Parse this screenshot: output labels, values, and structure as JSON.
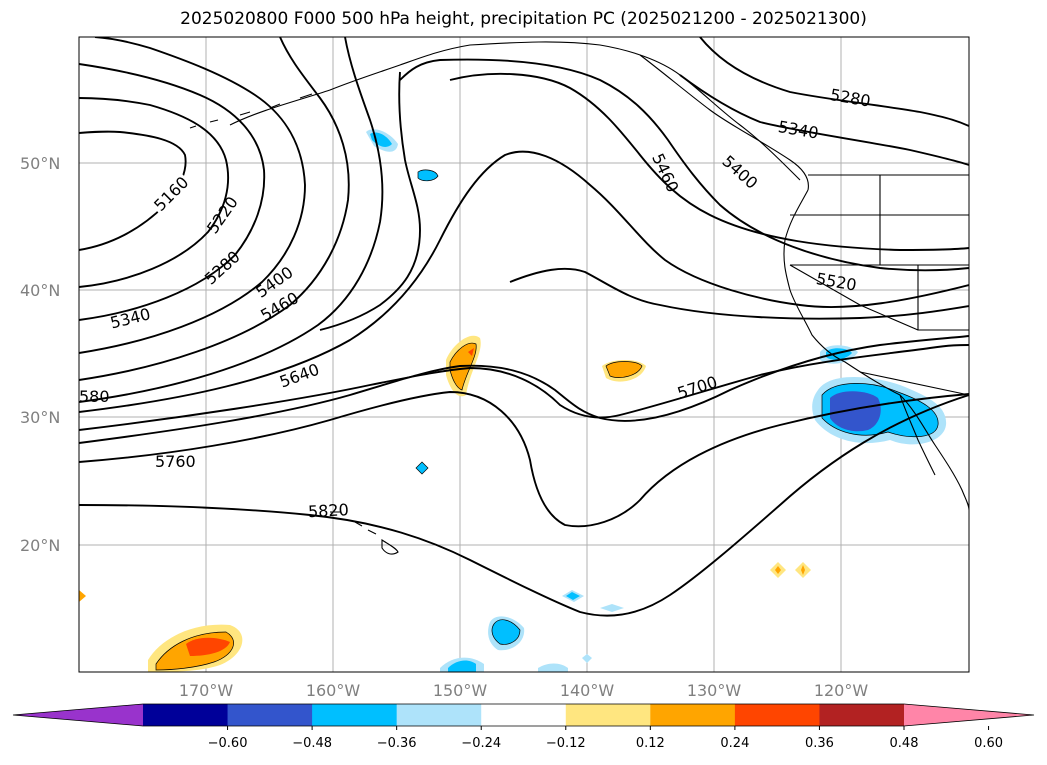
{
  "title": "2025020800 F000 500 hPa height, precipitation PC (2025021200 - 2025021300)",
  "latitude_labels": [
    "50°N",
    "40°N",
    "30°N",
    "20°N"
  ],
  "longitude_labels": [
    "170°W",
    "160°W",
    "150°W",
    "140°W",
    "130°W",
    "120°W"
  ],
  "contour_labels": [
    "5160",
    "5220",
    "5280",
    "5340",
    "5400",
    "5460",
    "580",
    "5640",
    "5700",
    "5760",
    "5820",
    "5460",
    "5400",
    "5340",
    "5280",
    "5520"
  ],
  "colorbar": {
    "ticks": [
      "−0.60",
      "−0.48",
      "−0.36",
      "−0.24",
      "−0.12",
      "0.12",
      "0.24",
      "0.36",
      "0.48",
      "0.60"
    ],
    "colors": [
      "#9933cc",
      "#000099",
      "#3355cc",
      "#00bfff",
      "#aee3fa",
      "#ffffff",
      "#ffe680",
      "#ffa500",
      "#ff4500",
      "#b22222",
      "#ff85a8"
    ]
  },
  "colors": {
    "contour": "#000000",
    "grid": "#b0b0b0",
    "axis_label": "#808080"
  }
}
